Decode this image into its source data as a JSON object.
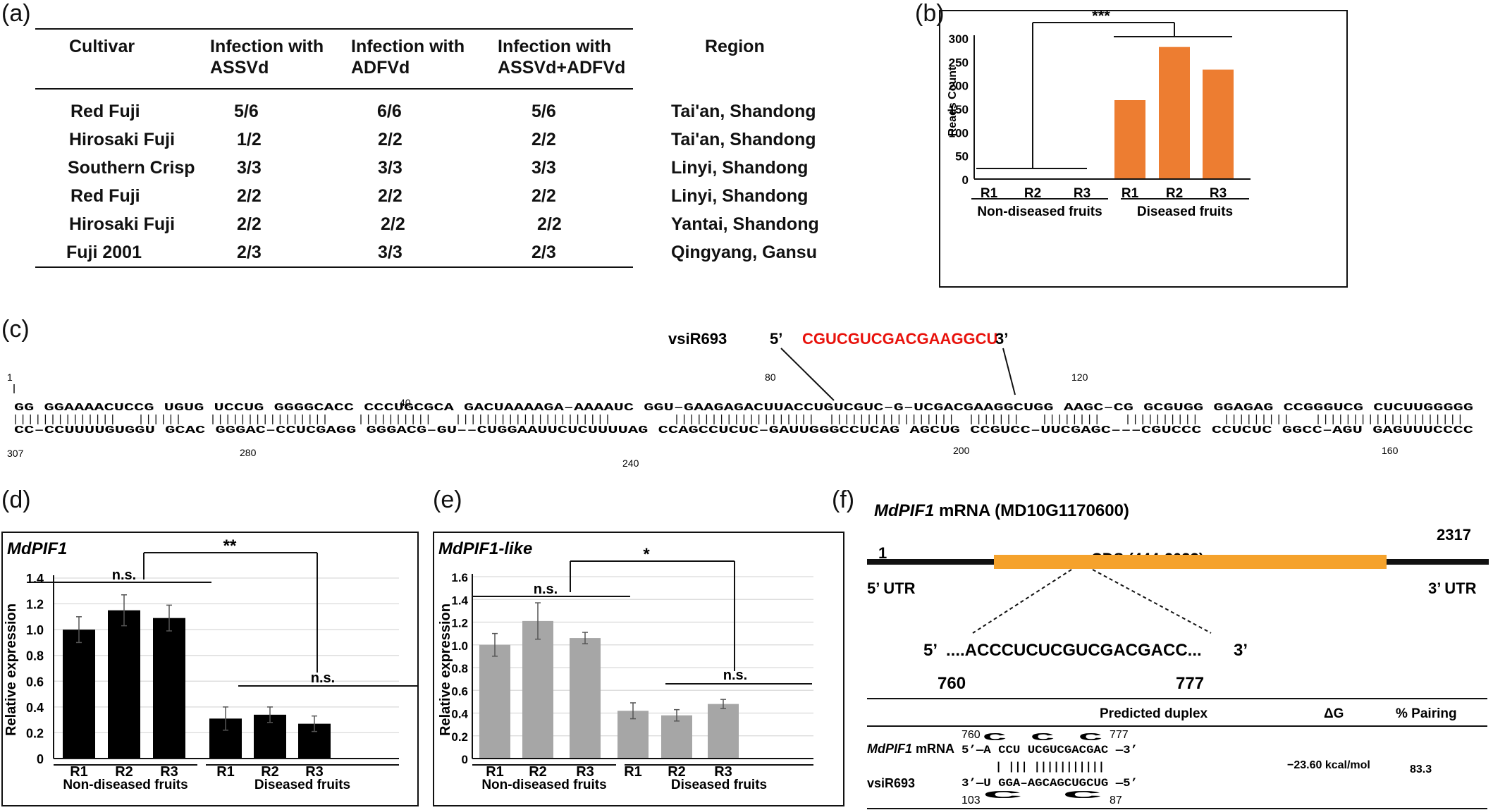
{
  "panels": {
    "a": "(a)",
    "b": "(b)",
    "c": "(c)",
    "d": "(d)",
    "e": "(e)",
    "f": "(f)"
  },
  "table_a": {
    "headers": [
      "Cultivar",
      "Infection with ASSVd",
      "Infection with ADFVd",
      "Infection with ASSVd+ADFVd",
      "Region"
    ],
    "header_lines": [
      [
        "Cultivar"
      ],
      [
        "Infection with",
        "ASSVd"
      ],
      [
        "Infection with",
        "ADFVd"
      ],
      [
        "Infection with",
        "ASSVd+ADFVd"
      ],
      [
        "Region"
      ]
    ],
    "rows": [
      [
        "Red Fuji",
        "5/6",
        "6/6",
        "5/6",
        "Tai'an, Shandong"
      ],
      [
        "Hirosaki Fuji",
        "1/2",
        "2/2",
        "2/2",
        "Tai'an, Shandong"
      ],
      [
        "Southern Crisp",
        "3/3",
        "3/3",
        "3/3",
        "Linyi, Shandong"
      ],
      [
        "Red Fuji",
        "2/2",
        "2/2",
        "2/2",
        "Linyi, Shandong"
      ],
      [
        "Hirosaki Fuji",
        "2/2",
        "2/2",
        "2/2",
        "Yantai, Shandong"
      ],
      [
        "Fuji 2001",
        "2/3",
        "3/3",
        "2/3",
        "Qingyang, Gansu"
      ]
    ]
  },
  "chart_data": [
    {
      "id": "b",
      "type": "bar",
      "categories": [
        "R1",
        "R2",
        "R3",
        "R1",
        "R2",
        "R3"
      ],
      "groups": [
        "Non-diseased fruits",
        "Diseased fruits"
      ],
      "values": [
        1,
        1,
        1,
        168,
        281,
        233
      ],
      "ylabel": "Reads Count",
      "ylim": [
        0,
        300
      ],
      "yticks": [
        0,
        50,
        100,
        150,
        200,
        250,
        300
      ],
      "significance": "***",
      "color": "#ED7D31"
    },
    {
      "id": "d",
      "type": "bar",
      "title": "MdPIF1",
      "categories": [
        "R1",
        "R2",
        "R3",
        "R1",
        "R2",
        "R3"
      ],
      "groups": [
        "Non-diseased fruits",
        "Diseased fruits"
      ],
      "values": [
        1.0,
        1.15,
        1.09,
        0.31,
        0.34,
        0.27
      ],
      "errors": [
        0.1,
        0.12,
        0.1,
        0.09,
        0.06,
        0.06
      ],
      "ylabel": "Relative expression",
      "ylim": [
        0,
        1.4
      ],
      "yticks": [
        "0",
        "0.2",
        "0.4",
        "0.6",
        "0.8",
        "1.0",
        "1.2",
        "1.4"
      ],
      "group_ns": [
        "n.s.",
        "n.s."
      ],
      "significance": "**",
      "color": "#000000",
      "grid": true
    },
    {
      "id": "e",
      "type": "bar",
      "title": "MdPIF1-like",
      "categories": [
        "R1",
        "R2",
        "R3",
        "R1",
        "R2",
        "R3"
      ],
      "groups": [
        "Non-diseased fruits",
        "Diseased fruits"
      ],
      "values": [
        1.0,
        1.21,
        1.06,
        0.42,
        0.38,
        0.48
      ],
      "errors": [
        0.1,
        0.16,
        0.05,
        0.07,
        0.05,
        0.04
      ],
      "ylabel": "Relative expression",
      "ylim": [
        0,
        1.6
      ],
      "yticks": [
        "0",
        "0.2",
        "0.4",
        "0.6",
        "0.8",
        "1.0",
        "1.2",
        "1.4",
        "1.6"
      ],
      "group_ns": [
        "n.s.",
        "n.s."
      ],
      "significance": "*",
      "color": "#A6A6A6",
      "grid": true
    }
  ],
  "panel_c": {
    "vsir_label": "vsiR693",
    "five": "5’",
    "three": "3’",
    "vsir_seq": "CGUCGUCGACGAAGGCU",
    "top_line": "GG GGAAAACUCCG  UGUG  UCCUG GGGGCACC  CCCUGCGCA  GACUAAAAGA–AAAAUC  GGU–GAAGAGACUUACCUGUCGUC–G–UCGACGAAGGCUGG AAGC–CG  GCGUGG GGAGAG CCGGGUCG CUCUUGGGGG",
    "bottom_line": "CC–CCUUUUGUGGU  GCAC  GGGAC–CCUCGAGG  GGGACG–GU––CUGGAAUUCUCUUUUAG  CCAGCCUCUC–GAUUGGGCCUCAG  AGCUG  CCGUCC–UUCGAGC–––CGUCCC  CCUCUC  GGCC–AGU  GAGUUUCCCC",
    "numbers": [
      "1",
      "307",
      "40",
      "280",
      "80",
      "240",
      "120",
      "200",
      "160"
    ]
  },
  "panel_f": {
    "title_gene": "MdPIF1",
    "title_rest": " mRNA (MD10G1170600)",
    "start": "1",
    "end": "2317",
    "cds": "CDS (444-2033)",
    "utr5": "5’ UTR",
    "utr3": "3’ UTR",
    "site_5": "5’",
    "site_seq": "....ACCCUCUCGUCGACGACC...",
    "site_3": "3’",
    "site_start": "760",
    "site_end": "777",
    "table_headers": [
      "Predicted duplex",
      "ΔG",
      "% Pairing"
    ],
    "mrna_label_gene": "MdPIF1",
    "mrna_label_rest": " mRNA",
    "vsir_label": "vsiR693",
    "n760": "760",
    "n777": "777",
    "n103": "103",
    "n87": "87",
    "mrna_line": "5’—A  CCU  UCGUCGACGAC  —3’",
    "mrna_bulge": "C      C                        C",
    "pair_line": "|    |||  |||||||||||",
    "vsir_line": "3’—U  GGA–AGCAGCUGCUG  —5’",
    "vsir_bulge": "C                              C",
    "dg": "−23.60 kcal/mol",
    "pairing": "83.3"
  }
}
